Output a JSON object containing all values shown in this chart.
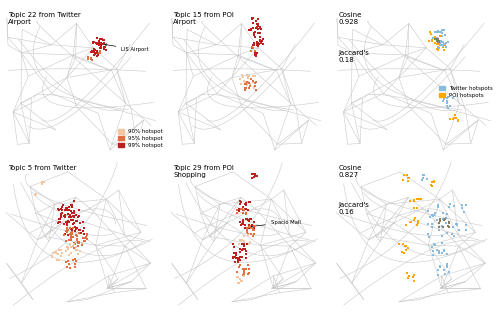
{
  "colors": {
    "hotspot_90": "#F5C5A0",
    "hotspot_95": "#E07040",
    "hotspot_99": "#BE1E1E",
    "twitter_blue": "#88BBDD",
    "poi_orange": "#FFA500",
    "overlap_gray": "#808060",
    "road_color": "#CCCCCC",
    "background": "#FFFFFF"
  },
  "panels": {
    "top_left_title": "Topic 22 from Twitter\nAirport",
    "top_mid_title": "Topic 15 from POI\nAirport",
    "top_right_cosine": "Cosine\n0.928",
    "top_right_jaccard": "Jaccard's\n0.18",
    "bot_left_title": "Topic 5 from Twitter",
    "bot_mid_title": "Topic 29 from POI\nShopping",
    "bot_right_cosine": "Cosine\n0.827",
    "bot_right_jaccard": "Jaccard's\n0.16"
  },
  "annotations": {
    "airport": "LIS Airport",
    "mall": "Spacio Mall"
  },
  "legend_hotspot": [
    "90% hotspot",
    "95% hotspot",
    "99% hotspot"
  ],
  "legend_combined": [
    "Twitter hotspots",
    "POI hotspots"
  ]
}
